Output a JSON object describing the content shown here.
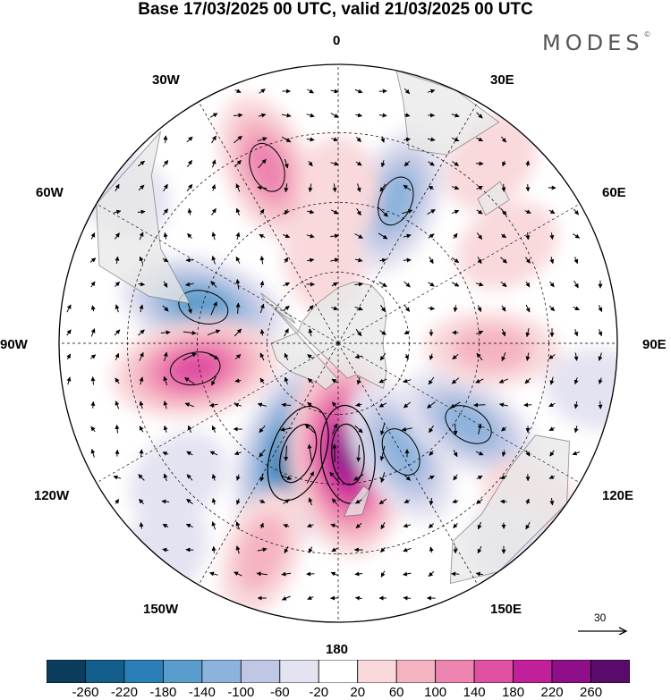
{
  "title": "Base 17/03/2025 00 UTC, valid 21/03/2025 00 UTC",
  "logo": "MODES",
  "logo_mark": "©",
  "longitude_labels": {
    "top": "0",
    "top_right": "30E",
    "right_upper": "60E",
    "right": "90E",
    "right_lower": "120E",
    "bottom_right": "150E",
    "bottom": "180",
    "bottom_left": "150W",
    "left_lower": "120W",
    "left": "90W",
    "left_upper": "60W",
    "top_left": "30W"
  },
  "reference_vector_label": "30",
  "colorbar": {
    "levels": [
      "-260",
      "-220",
      "-180",
      "-140",
      "-100",
      "-60",
      "-20",
      "20",
      "60",
      "100",
      "140",
      "180",
      "220",
      "260"
    ],
    "colors": [
      "#0b3c5d",
      "#145e8c",
      "#2a7fb8",
      "#5a9ccc",
      "#8db3dc",
      "#bfc7e4",
      "#e4e3f1",
      "#ffffff",
      "#f9d9dc",
      "#f5b3c2",
      "#ee84b0",
      "#e050a3",
      "#c0209a",
      "#8e0f89",
      "#5a0a6b"
    ]
  },
  "map": {
    "projection": "south-polar-stereographic",
    "land_color": "#e8e8e8",
    "coastline_color": "#777777",
    "anomaly_features": [
      {
        "name": "negative-center-120w-150w",
        "sign": "negative",
        "lon": -160,
        "colat": 0.42,
        "strength": 6
      },
      {
        "name": "positive-center-near-180",
        "sign": "positive",
        "lon": 175,
        "colat": 0.4,
        "strength": 6
      },
      {
        "name": "negative-center-south-atlantic",
        "sign": "negative",
        "lon": -75,
        "colat": 0.5,
        "strength": 4
      },
      {
        "name": "positive-center-south-pacific-east",
        "sign": "positive",
        "lon": -100,
        "colat": 0.52,
        "strength": 4
      },
      {
        "name": "positive-center-30w",
        "sign": "positive",
        "lon": -22,
        "colat": 0.68,
        "strength": 3
      },
      {
        "name": "negative-center-20e",
        "sign": "negative",
        "lon": 22,
        "colat": 0.55,
        "strength": 3
      },
      {
        "name": "negative-center-150e",
        "sign": "negative",
        "lon": 150,
        "colat": 0.45,
        "strength": 3
      },
      {
        "name": "negative-center-120e",
        "sign": "negative",
        "lon": 122,
        "colat": 0.55,
        "strength": 3
      },
      {
        "name": "positive-center-90e",
        "sign": "positive",
        "lon": 92,
        "colat": 0.55,
        "strength": 2
      },
      {
        "name": "positive-center-160w",
        "sign": "positive",
        "lon": -160,
        "colat": 0.8,
        "strength": 2
      }
    ]
  }
}
